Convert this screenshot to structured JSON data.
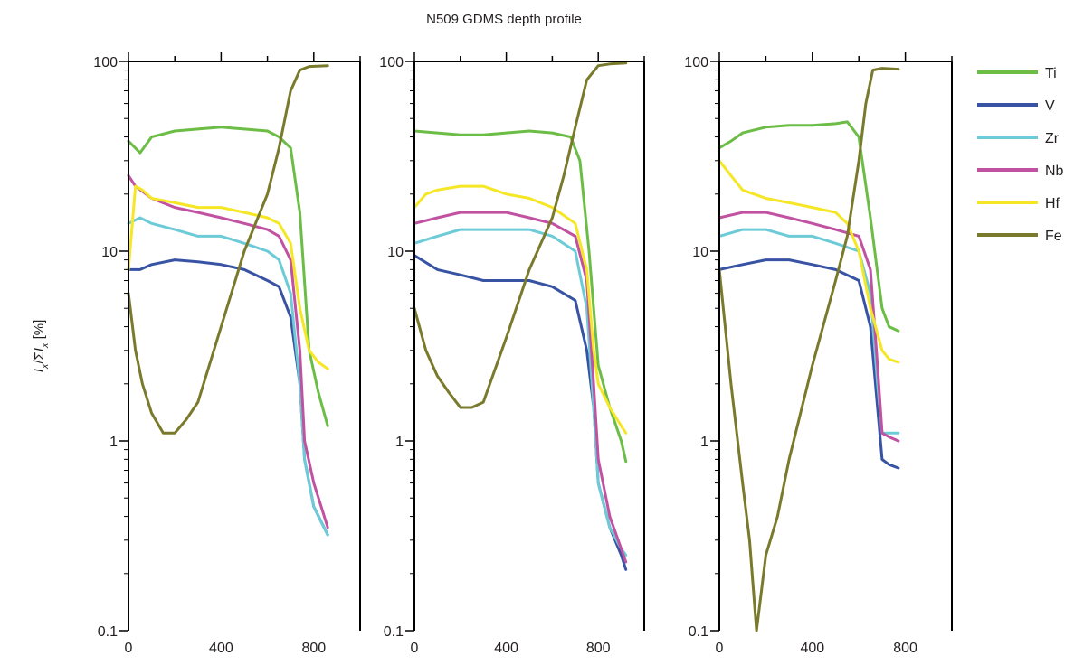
{
  "chart_data": {
    "type": "line",
    "title": "N509 GDMS depth profile",
    "ylabel": "I_x/ΣI_x [%]",
    "ylabel_parts": {
      "i1": "I",
      "s1": "x",
      "mid": "/Σ",
      "i2": "I",
      "s2": "x",
      "unit": " [%]"
    },
    "yscale": "log",
    "ylim": [
      0.1,
      100
    ],
    "y_tick_labels": [
      "0.1",
      "1",
      "10",
      "100"
    ],
    "y_ticks": [
      0.1,
      1,
      10,
      100
    ],
    "xlim": [
      0,
      1000
    ],
    "x_tick_labels": [
      "0",
      "400",
      "800"
    ],
    "x_ticks": [
      0,
      400,
      800
    ],
    "legend": {
      "placement": "right",
      "items": [
        {
          "name": "Ti",
          "color": "#6cbd45"
        },
        {
          "name": "V",
          "color": "#3953a4"
        },
        {
          "name": "Zr",
          "color": "#6dcbd8"
        },
        {
          "name": "Nb",
          "color": "#c151a1"
        },
        {
          "name": "Hf",
          "color": "#f5e626"
        },
        {
          "name": "Fe",
          "color": "#7a7a2c"
        }
      ]
    },
    "panels": [
      {
        "series": [
          {
            "name": "Ti",
            "color": "#6cbd45",
            "x": [
              0,
              50,
              100,
              200,
              300,
              400,
              500,
              600,
              650,
              700,
              740,
              780,
              820,
              860
            ],
            "y": [
              38,
              33,
              40,
              43,
              44,
              45,
              44,
              43,
              40,
              35,
              16,
              3,
              1.8,
              1.2
            ]
          },
          {
            "name": "V",
            "color": "#3953a4",
            "x": [
              0,
              50,
              100,
              200,
              300,
              400,
              500,
              600,
              650,
              700,
              740,
              760,
              800,
              860
            ],
            "y": [
              8,
              8,
              8.5,
              9,
              8.8,
              8.5,
              8,
              7,
              6.5,
              4.5,
              2,
              0.8,
              0.45,
              0.32
            ]
          },
          {
            "name": "Zr",
            "color": "#6dcbd8",
            "x": [
              0,
              50,
              100,
              200,
              300,
              400,
              500,
              600,
              650,
              700,
              740,
              760,
              800,
              860
            ],
            "y": [
              14,
              15,
              14,
              13,
              12,
              12,
              11,
              10,
              9,
              6,
              2,
              0.8,
              0.45,
              0.32
            ]
          },
          {
            "name": "Nb",
            "color": "#c151a1",
            "x": [
              0,
              30,
              100,
              200,
              300,
              400,
              500,
              600,
              650,
              700,
              740,
              760,
              800,
              860
            ],
            "y": [
              25,
              22,
              19,
              17,
              16,
              15,
              14,
              13,
              12,
              9,
              3,
              1,
              0.6,
              0.35
            ]
          },
          {
            "name": "Hf",
            "color": "#f5e626",
            "x": [
              0,
              30,
              60,
              100,
              200,
              300,
              400,
              500,
              600,
              650,
              700,
              740,
              780,
              820,
              860
            ],
            "y": [
              8,
              22,
              21,
              19,
              18,
              17,
              17,
              16,
              15,
              14,
              11,
              5,
              3,
              2.6,
              2.4
            ]
          },
          {
            "name": "Fe",
            "color": "#7a7a2c",
            "x": [
              0,
              30,
              60,
              100,
              150,
              200,
              250,
              300,
              400,
              500,
              600,
              650,
              700,
              740,
              780,
              860
            ],
            "y": [
              6,
              3,
              2,
              1.4,
              1.1,
              1.1,
              1.3,
              1.6,
              4,
              10,
              20,
              35,
              70,
              90,
              94,
              95
            ]
          }
        ]
      },
      {
        "series": [
          {
            "name": "Ti",
            "color": "#6cbd45",
            "x": [
              0,
              100,
              200,
              300,
              400,
              500,
              600,
              680,
              720,
              760,
              800,
              850,
              900,
              920
            ],
            "y": [
              43,
              42,
              41,
              41,
              42,
              43,
              42,
              40,
              30,
              10,
              2.5,
              1.5,
              1,
              0.78
            ]
          },
          {
            "name": "V",
            "color": "#3953a4",
            "x": [
              0,
              100,
              200,
              300,
              400,
              500,
              600,
              700,
              750,
              780,
              800,
              850,
              900,
              920
            ],
            "y": [
              9.5,
              8,
              7.5,
              7,
              7,
              7,
              6.5,
              5.5,
              3,
              1.5,
              0.6,
              0.35,
              0.25,
              0.21
            ]
          },
          {
            "name": "Zr",
            "color": "#6dcbd8",
            "x": [
              0,
              100,
              200,
              300,
              400,
              500,
              600,
              700,
              750,
              780,
              800,
              850,
              900,
              920
            ],
            "y": [
              11,
              12,
              13,
              13,
              13,
              13,
              12,
              10,
              5,
              1.5,
              0.6,
              0.35,
              0.27,
              0.25
            ]
          },
          {
            "name": "Nb",
            "color": "#c151a1",
            "x": [
              0,
              100,
              200,
              300,
              400,
              500,
              600,
              700,
              750,
              780,
              800,
              850,
              900,
              920
            ],
            "y": [
              14,
              15,
              16,
              16,
              16,
              15,
              14,
              12,
              7,
              2,
              0.8,
              0.4,
              0.27,
              0.23
            ]
          },
          {
            "name": "Hf",
            "color": "#f5e626",
            "x": [
              0,
              50,
              100,
              200,
              300,
              400,
              500,
              600,
              700,
              750,
              780,
              800,
              850,
              900,
              920
            ],
            "y": [
              17,
              20,
              21,
              22,
              22,
              20,
              19,
              17,
              14,
              8,
              3,
              2,
              1.5,
              1.2,
              1.1
            ]
          },
          {
            "name": "Fe",
            "color": "#7a7a2c",
            "x": [
              0,
              50,
              100,
              150,
              200,
              250,
              300,
              400,
              500,
              600,
              650,
              700,
              750,
              800,
              850,
              920
            ],
            "y": [
              5,
              3,
              2.2,
              1.8,
              1.5,
              1.5,
              1.6,
              3.5,
              8,
              15,
              25,
              45,
              80,
              95,
              97,
              98
            ]
          }
        ]
      },
      {
        "series": [
          {
            "name": "Ti",
            "color": "#6cbd45",
            "x": [
              0,
              50,
              100,
              200,
              300,
              400,
              500,
              550,
              600,
              650,
              700,
              730,
              770
            ],
            "y": [
              35,
              38,
              42,
              45,
              46,
              46,
              47,
              48,
              40,
              15,
              5,
              4,
              3.8
            ]
          },
          {
            "name": "V",
            "color": "#3953a4",
            "x": [
              0,
              100,
              200,
              300,
              400,
              500,
              600,
              650,
              680,
              700,
              730,
              770
            ],
            "y": [
              8,
              8.5,
              9,
              9,
              8.5,
              8,
              7,
              4,
              1.5,
              0.8,
              0.75,
              0.72
            ]
          },
          {
            "name": "Zr",
            "color": "#6dcbd8",
            "x": [
              0,
              100,
              200,
              300,
              400,
              500,
              600,
              650,
              680,
              700,
              730,
              770
            ],
            "y": [
              12,
              13,
              13,
              12,
              12,
              11,
              10,
              6,
              2,
              1.1,
              1.1,
              1.1
            ]
          },
          {
            "name": "Nb",
            "color": "#c151a1",
            "x": [
              0,
              100,
              200,
              300,
              400,
              500,
              600,
              650,
              680,
              700,
              730,
              770
            ],
            "y": [
              15,
              16,
              16,
              15,
              14,
              13,
              12,
              8,
              2.5,
              1.1,
              1.05,
              1
            ]
          },
          {
            "name": "Hf",
            "color": "#f5e626",
            "x": [
              0,
              50,
              100,
              200,
              300,
              400,
              500,
              550,
              600,
              650,
              700,
              730,
              770
            ],
            "y": [
              30,
              25,
              21,
              19,
              18,
              17,
              16,
              14,
              10,
              5,
              3,
              2.7,
              2.6
            ]
          },
          {
            "name": "Fe",
            "color": "#7a7a2c",
            "x": [
              0,
              50,
              100,
              130,
              160,
              200,
              250,
              300,
              400,
              500,
              550,
              600,
              630,
              660,
              700,
              770
            ],
            "y": [
              8,
              2,
              0.6,
              0.3,
              0.1,
              0.25,
              0.4,
              0.8,
              2.5,
              7,
              12,
              30,
              60,
              90,
              92,
              91
            ]
          }
        ]
      }
    ]
  }
}
